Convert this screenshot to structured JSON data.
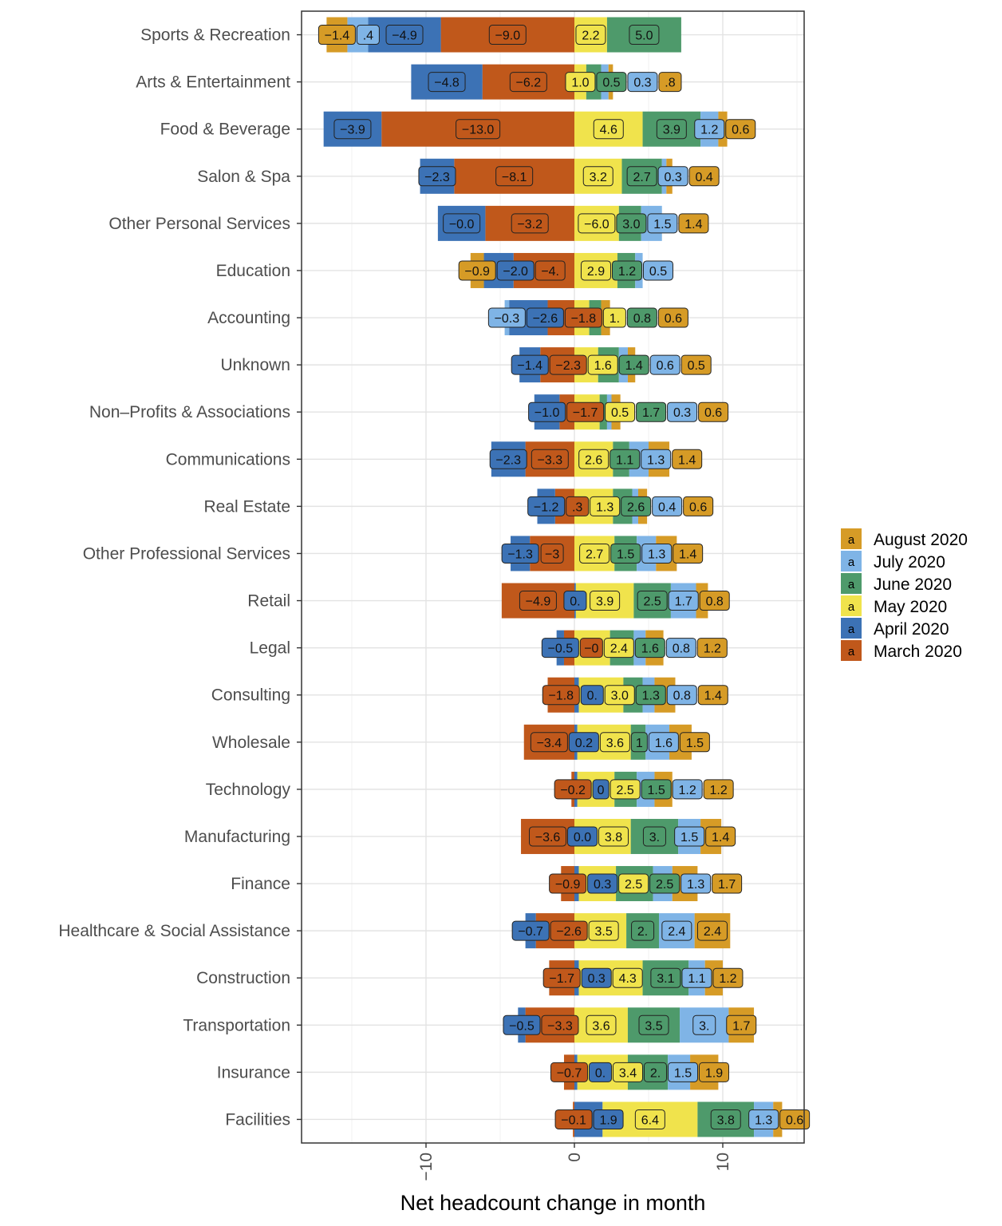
{
  "chart_data": {
    "type": "bar",
    "orientation": "horizontal",
    "stacked": "diverging",
    "title": "",
    "xlabel": "Net headcount change in month",
    "ylabel": "",
    "xlim": [
      -18.5,
      15.5
    ],
    "xticks": [
      -10,
      0,
      10
    ],
    "xtick_labels": [
      "-10",
      "0",
      "10"
    ],
    "grid": true,
    "legend_position": "right",
    "legend_key_text": "a",
    "categories": [
      "Sports & Recreation",
      "Arts & Entertainment",
      "Food & Beverage",
      "Salon & Spa",
      "Other Personal Services",
      "Education",
      "Accounting",
      "Unknown",
      "Non–Profits & Associations",
      "Communications",
      "Real Estate",
      "Other Professional Services",
      "Retail",
      "Legal",
      "Consulting",
      "Wholesale",
      "Technology",
      "Manufacturing",
      "Finance",
      "Healthcare & Social Assistance",
      "Construction",
      "Transportation",
      "Insurance",
      "Facilities"
    ],
    "series": [
      {
        "name": "March 2020",
        "color": "#C0581B",
        "values": [
          -9.0,
          -6.2,
          -13.0,
          -8.1,
          -6.0,
          -4.1,
          -1.8,
          -2.3,
          -1.0,
          -3.3,
          -1.3,
          -3.0,
          -4.9,
          -0.7,
          -1.8,
          -3.4,
          -0.2,
          -3.6,
          -0.9,
          -2.6,
          -1.7,
          -3.3,
          -0.7,
          -0.1
        ]
      },
      {
        "name": "April 2020",
        "color": "#3C72B5",
        "values": [
          -4.9,
          -4.8,
          -3.9,
          -2.3,
          -3.2,
          -2.0,
          -2.6,
          -1.4,
          -1.7,
          -2.3,
          -1.2,
          -1.3,
          0.1,
          -0.5,
          0.3,
          0.2,
          0.2,
          0.0,
          0.3,
          -0.7,
          0.3,
          -0.5,
          0.2,
          1.9
        ]
      },
      {
        "name": "May 2020",
        "color": "#F0E34C",
        "values": [
          2.2,
          0.8,
          4.6,
          3.2,
          3.0,
          2.9,
          1.0,
          1.6,
          1.7,
          2.6,
          2.6,
          2.7,
          3.9,
          2.4,
          3.0,
          3.6,
          2.5,
          3.8,
          2.5,
          3.5,
          4.3,
          3.6,
          3.4,
          6.4
        ]
      },
      {
        "name": "June 2020",
        "color": "#4E9A6B",
        "values": [
          5.0,
          1.0,
          3.9,
          2.7,
          1.5,
          1.2,
          0.8,
          1.4,
          0.5,
          1.1,
          1.3,
          1.5,
          2.5,
          1.6,
          1.3,
          1.0,
          1.5,
          3.2,
          2.5,
          2.2,
          3.1,
          3.5,
          2.7,
          3.8
        ]
      },
      {
        "name": "July 2020",
        "color": "#7FB4E6",
        "values": [
          -1.4,
          0.5,
          1.2,
          0.3,
          1.4,
          0.5,
          -0.3,
          0.6,
          0.3,
          1.3,
          0.4,
          1.3,
          1.7,
          0.8,
          0.8,
          1.6,
          1.2,
          1.5,
          1.3,
          2.4,
          1.1,
          3.3,
          1.5,
          1.3
        ]
      },
      {
        "name": "August 2020",
        "color": "#D69B26",
        "values": [
          -1.4,
          0.3,
          0.6,
          0.4,
          -0.0,
          -0.9,
          0.6,
          0.5,
          0.6,
          1.4,
          0.6,
          1.4,
          0.8,
          1.2,
          1.4,
          1.5,
          1.2,
          1.4,
          1.7,
          2.4,
          1.2,
          1.7,
          1.9,
          0.6
        ]
      }
    ],
    "data_labels": [
      [
        "-1.4",
        ".4",
        "-4.9",
        "-9.0",
        "2.2",
        "5.0"
      ],
      [
        "-4.8",
        "-6.2",
        "1.0",
        "0.5",
        "0.3",
        ".8"
      ],
      [
        "-3.9",
        "-13.0",
        "4.6",
        "3.9",
        "1.2",
        "0.6"
      ],
      [
        "-2.3",
        "-8.1",
        "3.2",
        "2.7",
        "0.3",
        "0.4"
      ],
      [
        "-0.0",
        "-3.2",
        "-6.0",
        "3.0",
        "1.5",
        "1.4"
      ],
      [
        "-0.9",
        "-2.0",
        "-4.",
        "2.9",
        "1.2",
        "0.5"
      ],
      [
        "-0.3",
        "-2.6",
        "-1.8",
        "1.",
        "0.8",
        "0.6"
      ],
      [
        "-1.4",
        "-2.3",
        "1.6",
        "1.4",
        "0.6",
        "0.5"
      ],
      [
        "-1.0",
        "-1.7",
        "0.5",
        "1.7",
        "0.3",
        "0.6"
      ],
      [
        "-2.3",
        "-3.3",
        "2.6",
        "1.1",
        "1.3",
        "1.4"
      ],
      [
        "-1.2",
        ".3",
        "1.3",
        "2.6",
        "0.4",
        "0.6"
      ],
      [
        "-1.3",
        "-3",
        "2.7",
        "1.5",
        "1.3",
        "1.4"
      ],
      [
        "-4.9",
        "0.",
        "3.9",
        "2.5",
        "1.7",
        "0.8"
      ],
      [
        "-0.5",
        "-0",
        "2.4",
        "1.6",
        "0.8",
        "1.2"
      ],
      [
        "-1.8",
        "0.",
        "3.0",
        "1.3",
        "0.8",
        "1.4"
      ],
      [
        "-3.4",
        "0.2",
        "3.6",
        "1",
        "1.6",
        "1.5"
      ],
      [
        "-0.2",
        "0",
        "2.5",
        "1.5",
        "1.2",
        "1.2"
      ],
      [
        "-3.6",
        "0.0",
        "3.8",
        "3.",
        "1.5",
        "1.4"
      ],
      [
        "-0.9",
        "0.3",
        "2.5",
        "2.5",
        "1.3",
        "1.7"
      ],
      [
        "-0.7",
        "-2.6",
        "3.5",
        "2.",
        "2.4",
        "2.4"
      ],
      [
        "-1.7",
        "0.3",
        "4.3",
        "3.1",
        "1.1",
        "1.2"
      ],
      [
        "-0.5",
        "-3.3",
        "3.6",
        "3.5",
        "3.",
        "1.7"
      ],
      [
        "-0.7",
        "0.",
        "3.4",
        "2.",
        "1.5",
        "1.9"
      ],
      [
        "-0.1",
        "1.9",
        "6.4",
        "3.8",
        "1.3",
        "0.6"
      ]
    ]
  }
}
